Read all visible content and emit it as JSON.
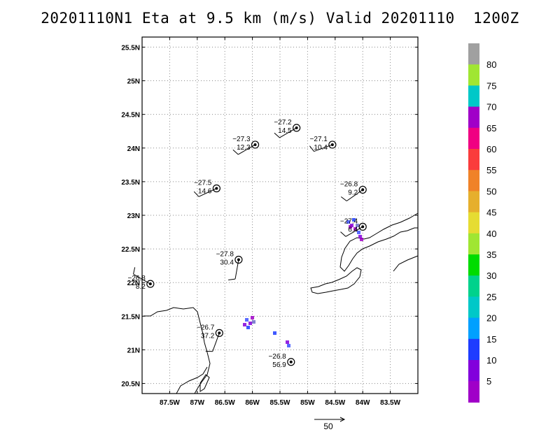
{
  "chart_data": {
    "type": "scatter",
    "title": "20201110N1 Eta at 9.5 km (m/s) Valid 20201110  1200Z",
    "x_ticks": [
      "87.5W",
      "87W",
      "86.5W",
      "86W",
      "85.5W",
      "85W",
      "84.5W",
      "84W",
      "83.5W"
    ],
    "y_ticks": [
      "25.5N",
      "25N",
      "24.5N",
      "24N",
      "23.5N",
      "23N",
      "22.5N",
      "22N",
      "21.5N",
      "21N",
      "20.5N"
    ],
    "xlim": [
      -88.0,
      -83.0
    ],
    "ylim": [
      20.35,
      25.65
    ],
    "grid": true,
    "stations": [
      {
        "lon": -85.2,
        "lat": 24.3,
        "top": "−27.2",
        "bottom": "14.5",
        "wdir": 240,
        "wspd": 10
      },
      {
        "lon": -85.95,
        "lat": 24.05,
        "top": "−27.3",
        "bottom": "12.3",
        "wdir": 240,
        "wspd": 10
      },
      {
        "lon": -84.55,
        "lat": 24.05,
        "top": "−27.1",
        "bottom": "10.4",
        "wdir": 250,
        "wspd": 10
      },
      {
        "lon": -86.65,
        "lat": 23.4,
        "top": "−27.5",
        "bottom": "14.6",
        "wdir": 245,
        "wspd": 10
      },
      {
        "lon": -84.0,
        "lat": 23.38,
        "top": "−26.8",
        "bottom": "9.2",
        "wdir": 235,
        "wspd": 10
      },
      {
        "lon": -84.0,
        "lat": 22.83,
        "top": "−27.4",
        "bottom": "6.4",
        "wdir": 240,
        "wspd": 10
      },
      {
        "lon": -86.25,
        "lat": 22.34,
        "top": "−27.8",
        "bottom": "30.4",
        "wdir": 190,
        "wspd": 10
      },
      {
        "lon": -87.85,
        "lat": 21.98,
        "top": "−26.8",
        "bottom": "8.2",
        "wdir": 300,
        "wspd": 10
      },
      {
        "lon": -86.6,
        "lat": 21.25,
        "top": "−26.7",
        "bottom": "37.2",
        "wdir": 200,
        "wspd": 10
      },
      {
        "lon": -85.3,
        "lat": 20.82,
        "top": "−26.8",
        "bottom": "56.9",
        "wdir": 0,
        "wspd": 0
      }
    ],
    "colorbar": {
      "labels": [
        "80",
        "75",
        "70",
        "65",
        "60",
        "55",
        "50",
        "45",
        "40",
        "35",
        "30",
        "25",
        "20",
        "15",
        "10",
        "5"
      ],
      "colors": [
        "#a0a0a0",
        "#a0e632",
        "#00c8c8",
        "#a000c8",
        "#f00082",
        "#fa3c3c",
        "#f08228",
        "#e6af2d",
        "#e6dc32",
        "#a0e632",
        "#00dc00",
        "#00d28c",
        "#00c8c8",
        "#00a0ff",
        "#1e3cff",
        "#8200dc",
        "#a000c8"
      ]
    },
    "reference_vector": {
      "label": "50"
    }
  },
  "colors": {
    "coast": "#000000",
    "grid": "#8a8a8a",
    "frame": "#000000"
  }
}
